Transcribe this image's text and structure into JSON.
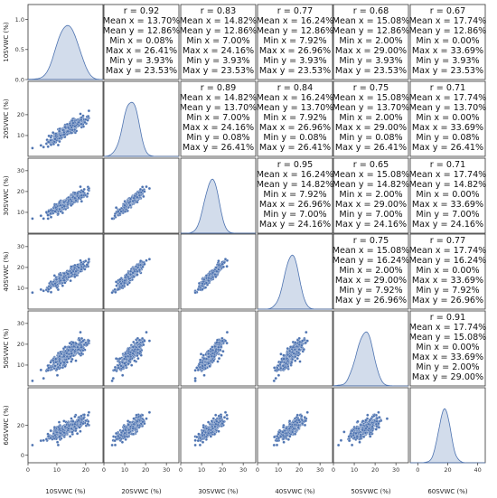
{
  "chart_data": {
    "type": "scatter",
    "title": "",
    "variables": [
      "10SVWC (%)",
      "20SVWC (%)",
      "30SVWC (%)",
      "40SVWC (%)",
      "50SVWC (%)",
      "60SVWC (%)"
    ],
    "x_ticks": [
      [
        0,
        10,
        20
      ],
      [
        0,
        10,
        20,
        30
      ],
      [
        0,
        10,
        20,
        30
      ],
      [
        0,
        10,
        20,
        30
      ],
      [
        0,
        10,
        20,
        30
      ],
      [
        0,
        20,
        40
      ]
    ],
    "y_ticks": [
      [
        "0.0",
        "0.5",
        "1.0"
      ],
      [
        "10",
        "20"
      ],
      [
        "10",
        "20",
        "30"
      ],
      [
        "10",
        "20",
        "30"
      ],
      [
        "10",
        "20",
        "30"
      ],
      [
        "0",
        "20"
      ]
    ],
    "stats": {
      "mean": [
        13.7,
        12.86,
        14.82,
        16.24,
        15.08,
        17.74
      ],
      "min": [
        0.08,
        3.93,
        7.0,
        7.92,
        2.0,
        0.0
      ],
      "max": [
        26.41,
        23.53,
        24.16,
        26.96,
        29.0,
        33.69
      ],
      "r": {
        "0-1": 0.92,
        "0-2": 0.83,
        "0-3": 0.77,
        "0-4": 0.68,
        "0-5": 0.67,
        "1-2": 0.89,
        "1-3": 0.84,
        "1-4": 0.75,
        "1-5": 0.71,
        "2-3": 0.95,
        "2-4": 0.65,
        "2-5": 0.71,
        "3-4": 0.75,
        "3-5": 0.77,
        "4-5": 0.91
      }
    },
    "panels_upper": [
      {
        "row": 0,
        "col": 1,
        "lines": [
          "r = 0.92",
          "Mean x = 13.70%",
          "Mean y = 12.86%",
          "Min x = 0.08%",
          "Max x = 26.41%",
          "Min y = 3.93%",
          "Max y = 23.53%"
        ]
      },
      {
        "row": 0,
        "col": 2,
        "lines": [
          "r = 0.83",
          "Mean x = 14.82%",
          "Mean y = 12.86%",
          "Min x = 7.00%",
          "Max x = 24.16%",
          "Min y = 3.93%",
          "Max y = 23.53%"
        ]
      },
      {
        "row": 0,
        "col": 3,
        "lines": [
          "r = 0.77",
          "Mean x = 16.24%",
          "Mean y = 12.86%",
          "Min x = 7.92%",
          "Max x = 26.96%",
          "Min y = 3.93%",
          "Max y = 23.53%"
        ]
      },
      {
        "row": 0,
        "col": 4,
        "lines": [
          "r = 0.68",
          "Mean x = 15.08%",
          "Mean y = 12.86%",
          "Min x = 2.00%",
          "Max x = 29.00%",
          "Min y = 3.93%",
          "Max y = 23.53%"
        ]
      },
      {
        "row": 0,
        "col": 5,
        "lines": [
          "r = 0.67",
          "Mean x = 17.74%",
          "Mean y = 12.86%",
          "Min x = 0.00%",
          "Max x = 33.69%",
          "Min y = 3.93%",
          "Max y = 23.53%"
        ]
      },
      {
        "row": 1,
        "col": 2,
        "lines": [
          "r = 0.89",
          "Mean x = 14.82%",
          "Mean y = 13.70%",
          "Min x = 7.00%",
          "Max x = 24.16%",
          "Min y = 0.08%",
          "Max y = 26.41%"
        ]
      },
      {
        "row": 1,
        "col": 3,
        "lines": [
          "r = 0.84",
          "Mean x = 16.24%",
          "Mean y = 13.70%",
          "Min x = 7.92%",
          "Max x = 26.96%",
          "Min y = 0.08%",
          "Max y = 26.41%"
        ]
      },
      {
        "row": 1,
        "col": 4,
        "lines": [
          "r = 0.75",
          "Mean x = 15.08%",
          "Mean y = 13.70%",
          "Min x = 2.00%",
          "Max x = 29.00%",
          "Min y = 0.08%",
          "Max y = 26.41%"
        ]
      },
      {
        "row": 1,
        "col": 5,
        "lines": [
          "r = 0.71",
          "Mean x = 17.74%",
          "Mean y = 13.70%",
          "Min x = 0.00%",
          "Max x = 33.69%",
          "Min y = 0.08%",
          "Max y = 26.41%"
        ]
      },
      {
        "row": 2,
        "col": 3,
        "lines": [
          "r = 0.95",
          "Mean x = 16.24%",
          "Mean y = 14.82%",
          "Min x = 7.92%",
          "Max x = 26.96%",
          "Min y = 7.00%",
          "Max y = 24.16%"
        ]
      },
      {
        "row": 2,
        "col": 4,
        "lines": [
          "r = 0.65",
          "Mean x = 15.08%",
          "Mean y = 14.82%",
          "Min x = 2.00%",
          "Max x = 29.00%",
          "Min y = 7.00%",
          "Max y = 24.16%"
        ]
      },
      {
        "row": 2,
        "col": 5,
        "lines": [
          "r = 0.71",
          "Mean x = 17.74%",
          "Mean y = 14.82%",
          "Min x = 0.00%",
          "Max x = 33.69%",
          "Min y = 7.00%",
          "Max y = 24.16%"
        ]
      },
      {
        "row": 3,
        "col": 4,
        "lines": [
          "r = 0.75",
          "Mean x = 15.08%",
          "Mean y = 16.24%",
          "Min x = 2.00%",
          "Max x = 29.00%",
          "Min y = 7.92%",
          "Max y = 26.96%"
        ]
      },
      {
        "row": 3,
        "col": 5,
        "lines": [
          "r = 0.77",
          "Mean x = 17.74%",
          "Mean y = 16.24%",
          "Min x = 0.00%",
          "Max x = 33.69%",
          "Min y = 7.92%",
          "Max y = 26.96%"
        ]
      },
      {
        "row": 4,
        "col": 5,
        "lines": [
          "r = 0.91",
          "Mean x = 17.74%",
          "Mean y = 15.08%",
          "Min x = 0.00%",
          "Max x = 33.69%",
          "Min y = 2.00%",
          "Max y = 29.00%"
        ]
      }
    ],
    "point_color": "#4C72B0",
    "kde_color": "#4C72B0",
    "grid": false
  }
}
